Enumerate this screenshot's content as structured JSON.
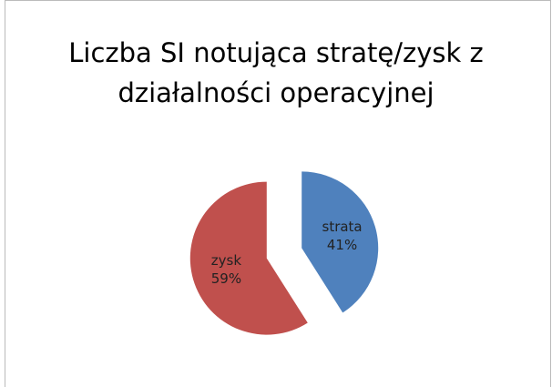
{
  "chart_data": {
    "type": "pie",
    "title": "Liczba SI notująca stratę/zysk z działalności operacyjnej",
    "categories": [
      "strata",
      "zysk"
    ],
    "values": [
      41,
      59
    ],
    "value_labels": [
      "41%",
      "59%"
    ],
    "colors": [
      "#4f81bd",
      "#c0504d"
    ]
  }
}
